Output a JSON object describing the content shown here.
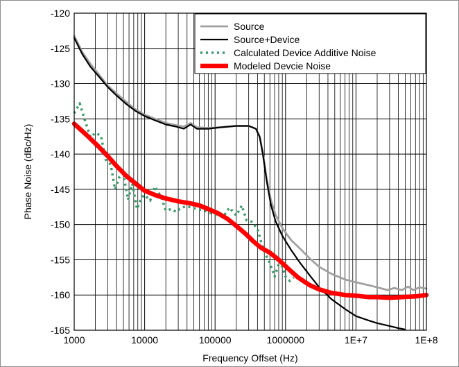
{
  "chart_data": {
    "type": "line",
    "title": "",
    "xlabel": "Frequency Offset (Hz)",
    "ylabel": "Phase Noise (dBc/Hz)",
    "xscale": "log",
    "xlim": [
      1000,
      100000000
    ],
    "ylim": [
      -165,
      -120
    ],
    "x_ticks": [
      {
        "value": 1000,
        "label": "1000"
      },
      {
        "value": 10000,
        "label": "10000"
      },
      {
        "value": 100000,
        "label": "100000"
      },
      {
        "value": 1000000,
        "label": "1000000"
      },
      {
        "value": 10000000,
        "label": "1E+7"
      },
      {
        "value": 100000000,
        "label": "1E+8"
      }
    ],
    "y_ticks": [
      {
        "value": -120,
        "label": "-120"
      },
      {
        "value": -125,
        "label": "-125"
      },
      {
        "value": -130,
        "label": "-130"
      },
      {
        "value": -135,
        "label": "-135"
      },
      {
        "value": -140,
        "label": "-140"
      },
      {
        "value": -145,
        "label": "-145"
      },
      {
        "value": -150,
        "label": "-150"
      },
      {
        "value": -155,
        "label": "-155"
      },
      {
        "value": -160,
        "label": "-160"
      },
      {
        "value": -165,
        "label": "-165"
      }
    ],
    "grid": true,
    "legend_position": "top-right",
    "series": [
      {
        "name": "Source",
        "color": "#a0a0a0",
        "style": "solid",
        "points": [
          [
            1000,
            -123.2
          ],
          [
            1300,
            -125.5
          ],
          [
            1700,
            -127.2
          ],
          [
            2200,
            -128.6
          ],
          [
            3000,
            -130.3
          ],
          [
            4000,
            -131.4
          ],
          [
            5500,
            -132.6
          ],
          [
            7500,
            -133.7
          ],
          [
            10000,
            -134.4
          ],
          [
            14000,
            -135.0
          ],
          [
            20000,
            -135.6
          ],
          [
            28000,
            -135.9
          ],
          [
            36000,
            -136.1
          ],
          [
            45000,
            -135.6
          ],
          [
            55000,
            -136.2
          ],
          [
            80000,
            -136.3
          ],
          [
            120000,
            -136.2
          ],
          [
            200000,
            -136.0
          ],
          [
            300000,
            -136.0
          ],
          [
            380000,
            -136.4
          ],
          [
            430000,
            -137.5
          ],
          [
            480000,
            -140.0
          ],
          [
            540000,
            -143.5
          ],
          [
            620000,
            -146.5
          ],
          [
            720000,
            -148.6
          ],
          [
            900000,
            -150.5
          ],
          [
            1200000,
            -152.2
          ],
          [
            1600000,
            -153.4
          ],
          [
            2200000,
            -154.8
          ],
          [
            3000000,
            -156.0
          ],
          [
            4500000,
            -157.0
          ],
          [
            7000000,
            -157.8
          ],
          [
            10000000,
            -158.2
          ],
          [
            15000000,
            -158.6
          ],
          [
            20000000,
            -158.9
          ],
          [
            28000000,
            -159.3
          ],
          [
            35000000,
            -159.0
          ],
          [
            45000000,
            -159.3
          ],
          [
            55000000,
            -158.8
          ],
          [
            65000000,
            -159.3
          ],
          [
            80000000,
            -158.9
          ],
          [
            100000000,
            -159.1
          ]
        ]
      },
      {
        "name": "Source+Device",
        "color": "#000000",
        "style": "solid",
        "points": [
          [
            1000,
            -123.5
          ],
          [
            1300,
            -125.8
          ],
          [
            1700,
            -127.6
          ],
          [
            2200,
            -128.9
          ],
          [
            3000,
            -130.5
          ],
          [
            4000,
            -131.7
          ],
          [
            5500,
            -132.9
          ],
          [
            7500,
            -133.9
          ],
          [
            10000,
            -134.6
          ],
          [
            14000,
            -135.2
          ],
          [
            20000,
            -135.8
          ],
          [
            28000,
            -136.1
          ],
          [
            36000,
            -136.4
          ],
          [
            45000,
            -135.8
          ],
          [
            55000,
            -136.4
          ],
          [
            80000,
            -136.4
          ],
          [
            120000,
            -136.2
          ],
          [
            200000,
            -136.0
          ],
          [
            300000,
            -136.0
          ],
          [
            380000,
            -136.4
          ],
          [
            430000,
            -137.6
          ],
          [
            480000,
            -140.2
          ],
          [
            540000,
            -143.8
          ],
          [
            620000,
            -147.2
          ],
          [
            720000,
            -149.5
          ],
          [
            900000,
            -151.6
          ],
          [
            1200000,
            -153.6
          ],
          [
            1600000,
            -155.4
          ],
          [
            2200000,
            -157.2
          ],
          [
            3000000,
            -158.9
          ],
          [
            4500000,
            -160.6
          ],
          [
            7000000,
            -162.0
          ],
          [
            10000000,
            -163.0
          ],
          [
            15000000,
            -163.6
          ],
          [
            20000000,
            -164.0
          ],
          [
            30000000,
            -164.4
          ],
          [
            40000000,
            -164.7
          ],
          [
            50000000,
            -164.9
          ]
        ]
      },
      {
        "name": "Calculated Device Additive Noise",
        "color": "#3a9a6a",
        "style": "dotted",
        "points": [
          [
            1000,
            -134.2
          ],
          [
            1200,
            -132.8
          ],
          [
            1400,
            -135.0
          ],
          [
            1700,
            -137.6
          ],
          [
            2000,
            -137.0
          ],
          [
            2400,
            -137.4
          ],
          [
            2800,
            -140.8
          ],
          [
            3300,
            -141.5
          ],
          [
            3800,
            -145.0
          ],
          [
            4400,
            -143.2
          ],
          [
            5000,
            -142.8
          ],
          [
            5800,
            -146.5
          ],
          [
            6700,
            -144.2
          ],
          [
            7800,
            -147.8
          ],
          [
            9000,
            -146.2
          ],
          [
            10000,
            -145.8
          ],
          [
            12000,
            -146.6
          ],
          [
            14000,
            -144.6
          ],
          [
            17000,
            -146.0
          ],
          [
            20000,
            -148.0
          ],
          [
            24000,
            -147.8
          ],
          [
            28000,
            -148.2
          ],
          [
            33000,
            -147.6
          ],
          [
            40000,
            -147.4
          ],
          [
            50000,
            -147.7
          ],
          [
            70000,
            -148.0
          ],
          [
            100000,
            -148.6
          ],
          [
            130000,
            -148.9
          ],
          [
            160000,
            -147.6
          ],
          [
            200000,
            -148.7
          ],
          [
            240000,
            -147.3
          ],
          [
            280000,
            -149.4
          ],
          [
            330000,
            -149.6
          ],
          [
            400000,
            -150.6
          ],
          [
            460000,
            -152.8
          ],
          [
            520000,
            -154.2
          ],
          [
            600000,
            -155.5
          ],
          [
            700000,
            -157.4
          ],
          [
            800000,
            -155.6
          ],
          [
            900000,
            -156.0
          ],
          [
            1000000,
            -157.4
          ],
          [
            1150000,
            -158.0
          ],
          [
            1300000,
            -157.5
          ]
        ]
      },
      {
        "name": "Modeled Devcie Noise",
        "color": "#ff0000",
        "style": "solid",
        "points": [
          [
            1000,
            -135.7
          ],
          [
            1500,
            -137.3
          ],
          [
            2200,
            -138.9
          ],
          [
            3000,
            -140.3
          ],
          [
            4000,
            -141.7
          ],
          [
            5500,
            -143.1
          ],
          [
            7500,
            -144.2
          ],
          [
            10000,
            -145.2
          ],
          [
            14000,
            -145.8
          ],
          [
            20000,
            -146.3
          ],
          [
            30000,
            -146.7
          ],
          [
            45000,
            -147.0
          ],
          [
            60000,
            -147.3
          ],
          [
            80000,
            -147.8
          ],
          [
            110000,
            -148.4
          ],
          [
            150000,
            -149.2
          ],
          [
            200000,
            -150.2
          ],
          [
            270000,
            -151.3
          ],
          [
            350000,
            -152.4
          ],
          [
            450000,
            -153.3
          ],
          [
            600000,
            -154.0
          ],
          [
            800000,
            -155.0
          ],
          [
            1100000,
            -156.3
          ],
          [
            1500000,
            -157.5
          ],
          [
            2200000,
            -158.6
          ],
          [
            3000000,
            -159.2
          ],
          [
            4500000,
            -159.7
          ],
          [
            7000000,
            -160.0
          ],
          [
            10000000,
            -160.1
          ],
          [
            15000000,
            -160.3
          ],
          [
            20000000,
            -160.3
          ],
          [
            30000000,
            -160.4
          ],
          [
            45000000,
            -160.3
          ],
          [
            70000000,
            -160.2
          ],
          [
            100000000,
            -160.0
          ]
        ]
      }
    ]
  }
}
